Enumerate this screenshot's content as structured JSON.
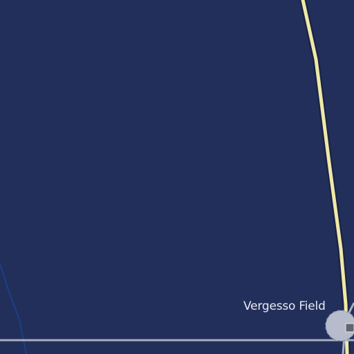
{
  "map": {
    "colors": {
      "background": "#232f5b",
      "highway": "#efe9a8",
      "highway_casing": "#1b2447",
      "road": "#a9aec2",
      "thin_road": "#1d3f86",
      "poi_fill": "#b7bccd",
      "poi_border": "#8d93a8",
      "label_text": "#e8ebf2"
    },
    "features": {
      "highway": "main-road",
      "local_road": "local-road",
      "poi_icon": "place-marker-icon"
    },
    "labels": {
      "poi_name": "Vergesso Field"
    }
  }
}
